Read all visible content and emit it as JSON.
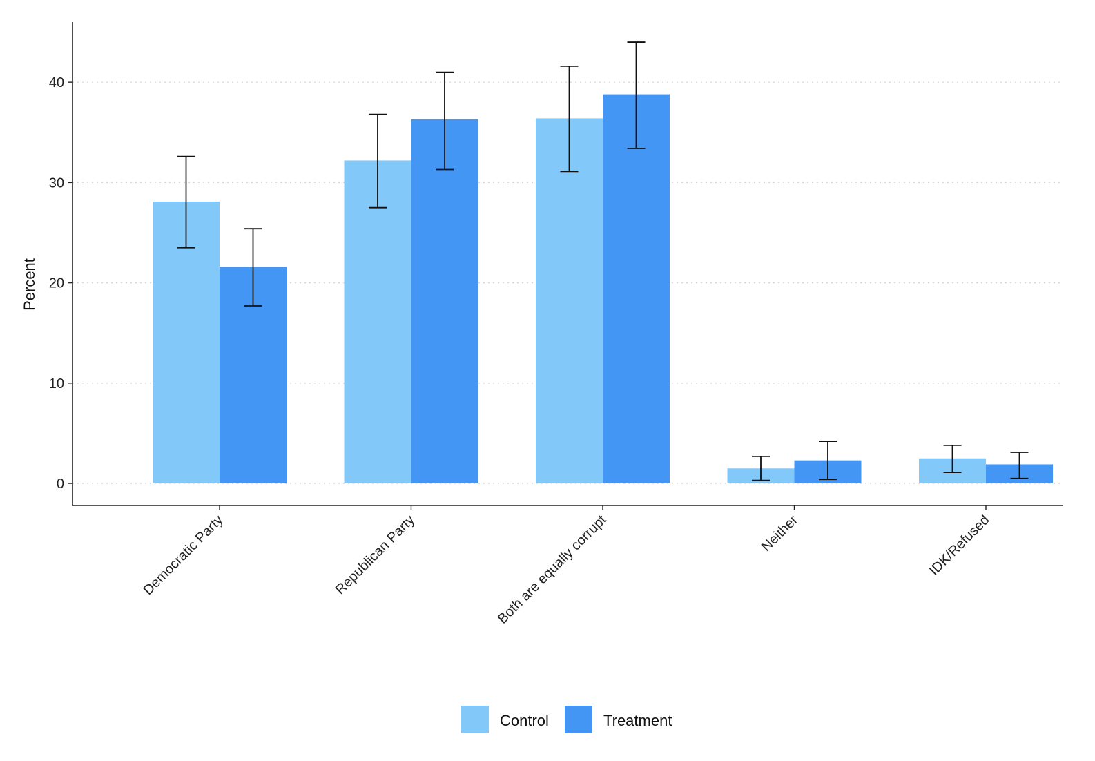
{
  "chart_data": {
    "type": "bar",
    "title": "",
    "xlabel": "",
    "ylabel": "Percent",
    "ylim": [
      -2.2,
      46
    ],
    "yticks": [
      0,
      10,
      20,
      30,
      40
    ],
    "grid": "horizontal dotted",
    "legend_position": "bottom",
    "categories": [
      "Democratic Party",
      "Republican Party",
      "Both are equally corrupt",
      "Neither",
      "IDK/Refused"
    ],
    "series": [
      {
        "name": "Control",
        "color": "#82C8F8",
        "values": [
          28.1,
          32.2,
          36.4,
          1.5,
          2.5
        ],
        "ci_low": [
          23.5,
          27.5,
          31.1,
          0.3,
          1.1
        ],
        "ci_high": [
          32.6,
          36.8,
          41.6,
          2.7,
          3.8
        ]
      },
      {
        "name": "Treatment",
        "color": "#4496F5",
        "values": [
          21.6,
          36.3,
          38.8,
          2.3,
          1.9
        ],
        "ci_low": [
          17.7,
          31.3,
          33.4,
          0.4,
          0.5
        ],
        "ci_high": [
          25.4,
          41.0,
          44.0,
          4.2,
          3.1
        ]
      }
    ]
  }
}
